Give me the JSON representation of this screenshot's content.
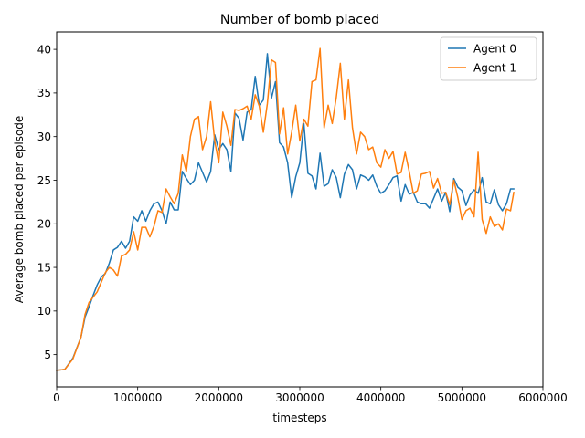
{
  "chart_data": {
    "type": "line",
    "title": "Number of bomb placed",
    "xlabel": "timesteps",
    "ylabel": "Average bomb placed per episode",
    "xlim": [
      0,
      6000000
    ],
    "ylim": [
      1.3,
      42.0
    ],
    "x_ticks": [
      0,
      1000000,
      2000000,
      3000000,
      4000000,
      5000000,
      6000000
    ],
    "x_tick_labels": [
      "0",
      "1000000",
      "2000000",
      "3000000",
      "4000000",
      "5000000",
      "6000000"
    ],
    "y_ticks": [
      5,
      10,
      15,
      20,
      25,
      30,
      35,
      40
    ],
    "y_tick_labels": [
      "5",
      "10",
      "15",
      "20",
      "25",
      "30",
      "35",
      "40"
    ],
    "grid": false,
    "legend_position": "top-right",
    "series": [
      {
        "name": "Agent 0",
        "color": "#1f77b4",
        "points": [
          [
            0,
            3.2
          ],
          [
            100000,
            3.3
          ],
          [
            200000,
            4.6
          ],
          [
            300000,
            7.0
          ],
          [
            350000,
            9.3
          ],
          [
            400000,
            10.5
          ],
          [
            450000,
            11.8
          ],
          [
            500000,
            13.0
          ],
          [
            550000,
            13.9
          ],
          [
            600000,
            14.3
          ],
          [
            650000,
            15.5
          ],
          [
            700000,
            17.0
          ],
          [
            750000,
            17.3
          ],
          [
            800000,
            18.0
          ],
          [
            850000,
            17.2
          ],
          [
            900000,
            18.0
          ],
          [
            950000,
            20.8
          ],
          [
            1000000,
            20.3
          ],
          [
            1050000,
            21.5
          ],
          [
            1100000,
            20.3
          ],
          [
            1150000,
            21.5
          ],
          [
            1200000,
            22.3
          ],
          [
            1250000,
            22.5
          ],
          [
            1300000,
            21.5
          ],
          [
            1350000,
            20.0
          ],
          [
            1400000,
            22.5
          ],
          [
            1450000,
            21.6
          ],
          [
            1500000,
            21.6
          ],
          [
            1550000,
            26.0
          ],
          [
            1600000,
            25.2
          ],
          [
            1650000,
            24.5
          ],
          [
            1700000,
            25.0
          ],
          [
            1750000,
            27.0
          ],
          [
            1800000,
            25.9
          ],
          [
            1850000,
            24.8
          ],
          [
            1900000,
            26.0
          ],
          [
            1950000,
            30.2
          ],
          [
            2000000,
            28.5
          ],
          [
            2050000,
            29.2
          ],
          [
            2100000,
            28.5
          ],
          [
            2150000,
            26.0
          ],
          [
            2200000,
            32.7
          ],
          [
            2250000,
            32.1
          ],
          [
            2300000,
            29.6
          ],
          [
            2350000,
            32.8
          ],
          [
            2400000,
            33.1
          ],
          [
            2450000,
            36.9
          ],
          [
            2500000,
            33.6
          ],
          [
            2550000,
            34.2
          ],
          [
            2600000,
            39.5
          ],
          [
            2650000,
            34.4
          ],
          [
            2700000,
            36.3
          ],
          [
            2750000,
            29.3
          ],
          [
            2800000,
            28.8
          ],
          [
            2850000,
            27.0
          ],
          [
            2900000,
            23.0
          ],
          [
            2950000,
            25.4
          ],
          [
            3000000,
            27.0
          ],
          [
            3050000,
            31.5
          ],
          [
            3100000,
            25.8
          ],
          [
            3150000,
            25.5
          ],
          [
            3200000,
            24.0
          ],
          [
            3250000,
            28.1
          ],
          [
            3300000,
            24.3
          ],
          [
            3350000,
            24.6
          ],
          [
            3400000,
            26.2
          ],
          [
            3450000,
            25.3
          ],
          [
            3500000,
            23.0
          ],
          [
            3550000,
            25.7
          ],
          [
            3600000,
            26.8
          ],
          [
            3650000,
            26.2
          ],
          [
            3700000,
            24.0
          ],
          [
            3750000,
            25.6
          ],
          [
            3800000,
            25.4
          ],
          [
            3850000,
            25.0
          ],
          [
            3900000,
            25.6
          ],
          [
            3950000,
            24.3
          ],
          [
            4000000,
            23.5
          ],
          [
            4050000,
            23.8
          ],
          [
            4100000,
            24.5
          ],
          [
            4150000,
            25.3
          ],
          [
            4200000,
            25.5
          ],
          [
            4250000,
            22.6
          ],
          [
            4300000,
            24.5
          ],
          [
            4350000,
            23.4
          ],
          [
            4400000,
            23.6
          ],
          [
            4450000,
            22.5
          ],
          [
            4500000,
            22.3
          ],
          [
            4550000,
            22.3
          ],
          [
            4600000,
            21.8
          ],
          [
            4650000,
            22.9
          ],
          [
            4700000,
            24.0
          ],
          [
            4750000,
            22.6
          ],
          [
            4800000,
            23.6
          ],
          [
            4850000,
            21.4
          ],
          [
            4900000,
            25.2
          ],
          [
            4950000,
            24.2
          ],
          [
            5000000,
            23.8
          ],
          [
            5050000,
            22.1
          ],
          [
            5100000,
            23.3
          ],
          [
            5150000,
            23.9
          ],
          [
            5200000,
            23.5
          ],
          [
            5250000,
            25.3
          ],
          [
            5300000,
            22.5
          ],
          [
            5350000,
            22.3
          ],
          [
            5400000,
            23.9
          ],
          [
            5450000,
            22.2
          ],
          [
            5500000,
            21.5
          ],
          [
            5550000,
            22.3
          ],
          [
            5600000,
            24.0
          ],
          [
            5640000,
            24.0
          ]
        ]
      },
      {
        "name": "Agent 1",
        "color": "#ff7f0e",
        "points": [
          [
            0,
            3.2
          ],
          [
            100000,
            3.3
          ],
          [
            200000,
            4.5
          ],
          [
            300000,
            7.0
          ],
          [
            350000,
            9.6
          ],
          [
            400000,
            11.0
          ],
          [
            450000,
            11.6
          ],
          [
            500000,
            12.2
          ],
          [
            550000,
            13.3
          ],
          [
            600000,
            14.4
          ],
          [
            650000,
            15.0
          ],
          [
            700000,
            14.7
          ],
          [
            750000,
            14.0
          ],
          [
            800000,
            16.3
          ],
          [
            850000,
            16.5
          ],
          [
            900000,
            17.0
          ],
          [
            950000,
            19.1
          ],
          [
            1000000,
            17.0
          ],
          [
            1050000,
            19.6
          ],
          [
            1100000,
            19.6
          ],
          [
            1150000,
            18.5
          ],
          [
            1200000,
            19.7
          ],
          [
            1250000,
            21.5
          ],
          [
            1300000,
            21.3
          ],
          [
            1350000,
            24.0
          ],
          [
            1400000,
            23.1
          ],
          [
            1450000,
            22.3
          ],
          [
            1500000,
            23.5
          ],
          [
            1550000,
            27.9
          ],
          [
            1600000,
            26.0
          ],
          [
            1650000,
            30.0
          ],
          [
            1700000,
            32.0
          ],
          [
            1750000,
            32.3
          ],
          [
            1800000,
            28.5
          ],
          [
            1850000,
            30.0
          ],
          [
            1900000,
            34.0
          ],
          [
            1950000,
            29.5
          ],
          [
            2000000,
            27.0
          ],
          [
            2050000,
            32.8
          ],
          [
            2100000,
            31.2
          ],
          [
            2150000,
            29.0
          ],
          [
            2200000,
            33.1
          ],
          [
            2250000,
            33.0
          ],
          [
            2300000,
            33.2
          ],
          [
            2350000,
            33.5
          ],
          [
            2400000,
            32.0
          ],
          [
            2450000,
            34.8
          ],
          [
            2500000,
            33.5
          ],
          [
            2550000,
            30.5
          ],
          [
            2600000,
            33.8
          ],
          [
            2650000,
            38.8
          ],
          [
            2700000,
            38.5
          ],
          [
            2750000,
            30.3
          ],
          [
            2800000,
            33.3
          ],
          [
            2850000,
            28.0
          ],
          [
            2900000,
            30.5
          ],
          [
            2950000,
            33.6
          ],
          [
            3000000,
            29.5
          ],
          [
            3050000,
            32.0
          ],
          [
            3100000,
            31.2
          ],
          [
            3150000,
            36.3
          ],
          [
            3200000,
            36.5
          ],
          [
            3250000,
            40.1
          ],
          [
            3300000,
            31.0
          ],
          [
            3350000,
            33.6
          ],
          [
            3400000,
            31.5
          ],
          [
            3450000,
            34.5
          ],
          [
            3500000,
            38.4
          ],
          [
            3550000,
            32.0
          ],
          [
            3600000,
            36.5
          ],
          [
            3650000,
            31.0
          ],
          [
            3700000,
            28.0
          ],
          [
            3750000,
            30.5
          ],
          [
            3800000,
            30.0
          ],
          [
            3850000,
            28.5
          ],
          [
            3900000,
            28.8
          ],
          [
            3950000,
            27.0
          ],
          [
            4000000,
            26.5
          ],
          [
            4050000,
            28.5
          ],
          [
            4100000,
            27.5
          ],
          [
            4150000,
            28.3
          ],
          [
            4200000,
            25.7
          ],
          [
            4250000,
            25.9
          ],
          [
            4300000,
            28.2
          ],
          [
            4350000,
            26.0
          ],
          [
            4400000,
            23.5
          ],
          [
            4450000,
            23.8
          ],
          [
            4500000,
            25.7
          ],
          [
            4550000,
            25.8
          ],
          [
            4600000,
            26.0
          ],
          [
            4650000,
            24.1
          ],
          [
            4700000,
            25.2
          ],
          [
            4750000,
            23.5
          ],
          [
            4800000,
            23.6
          ],
          [
            4850000,
            22.2
          ],
          [
            4900000,
            25.0
          ],
          [
            4950000,
            23.0
          ],
          [
            5000000,
            20.5
          ],
          [
            5050000,
            21.5
          ],
          [
            5100000,
            21.8
          ],
          [
            5150000,
            20.8
          ],
          [
            5200000,
            28.2
          ],
          [
            5250000,
            20.5
          ],
          [
            5300000,
            18.9
          ],
          [
            5350000,
            20.8
          ],
          [
            5400000,
            19.7
          ],
          [
            5450000,
            20.0
          ],
          [
            5500000,
            19.3
          ],
          [
            5550000,
            21.7
          ],
          [
            5600000,
            21.5
          ],
          [
            5640000,
            23.6
          ]
        ]
      }
    ]
  }
}
